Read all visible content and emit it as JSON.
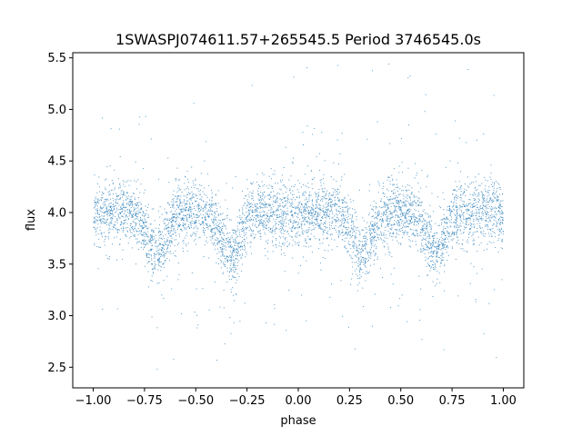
{
  "chart_data": {
    "type": "scatter",
    "title": "1SWASPJ074611.57+265545.5 Period 3746545.0s",
    "xlabel": "phase",
    "ylabel": "flux",
    "xlim": [
      -1.1,
      1.1
    ],
    "ylim": [
      2.3,
      5.55
    ],
    "xticks": [
      -1.0,
      -0.75,
      -0.5,
      -0.25,
      0.0,
      0.25,
      0.5,
      0.75,
      1.0
    ],
    "xtick_labels": [
      "−1.00",
      "−0.75",
      "−0.50",
      "−0.25",
      "0.00",
      "0.25",
      "0.50",
      "0.75",
      "1.00"
    ],
    "yticks": [
      2.5,
      3.0,
      3.5,
      4.0,
      4.5,
      5.0,
      5.5
    ],
    "ytick_labels": [
      "2.5",
      "3.0",
      "3.5",
      "4.0",
      "4.5",
      "5.0",
      "5.5"
    ],
    "grid": false,
    "marker_color": "#1f77b4",
    "series": [
      {
        "phase_range": [
          -1.0,
          1.0
        ],
        "baseline_flux": 4.0,
        "scatter_sigma": 0.15,
        "dip_phases": [
          -0.69,
          -0.33,
          0.31,
          0.67
        ],
        "dip_flux": 3.6,
        "flux_min": 2.4,
        "flux_max": 5.47
      }
    ]
  }
}
